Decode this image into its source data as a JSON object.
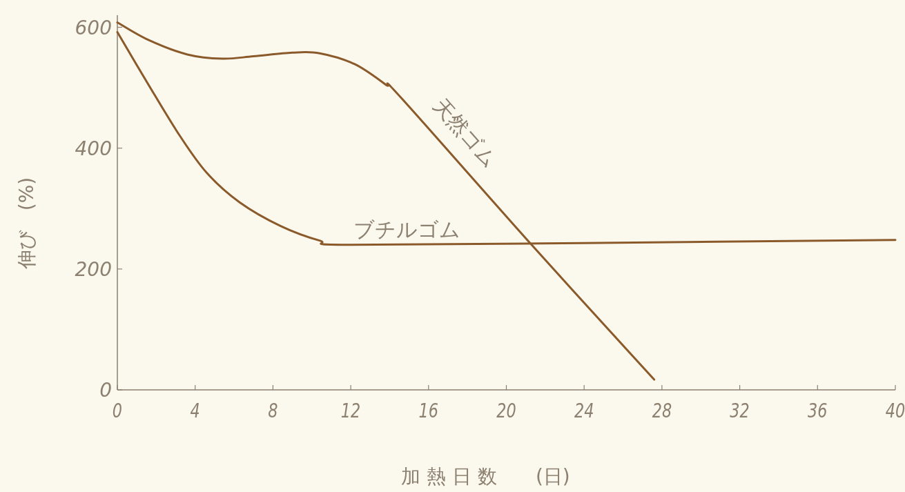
{
  "chart_data": {
    "type": "line",
    "xlabel": "加 熱 日 数　　(日)",
    "ylabel": "伸び　(%)",
    "xlim": [
      0,
      40
    ],
    "xticks": [
      0,
      4,
      8,
      12,
      16,
      20,
      24,
      28,
      32,
      36,
      40
    ],
    "ylim": [
      0,
      620
    ],
    "yticks": [
      0,
      200,
      400,
      600
    ],
    "legend": false,
    "grid": false,
    "marker": "none",
    "line_style": "solid",
    "series": [
      {
        "name": "天然ゴム",
        "color": "#8b5a2b",
        "x": [
          0,
          1.6,
          3.6,
          5.4,
          7.0,
          9.0,
          10.4,
          12.2,
          13.8,
          14.6,
          21.3,
          27.6
        ],
        "values": [
          608,
          579,
          555,
          548,
          552,
          558,
          557,
          539,
          505,
          483,
          240,
          17
        ]
      },
      {
        "name": "ブチルゴム",
        "color": "#8b5a2b",
        "x": [
          0,
          1.6,
          3.2,
          4.6,
          6.3,
          8.4,
          10.4,
          11.8,
          24,
          40
        ],
        "values": [
          592,
          505,
          421,
          359,
          310,
          271,
          247,
          240,
          243,
          248
        ]
      }
    ]
  }
}
